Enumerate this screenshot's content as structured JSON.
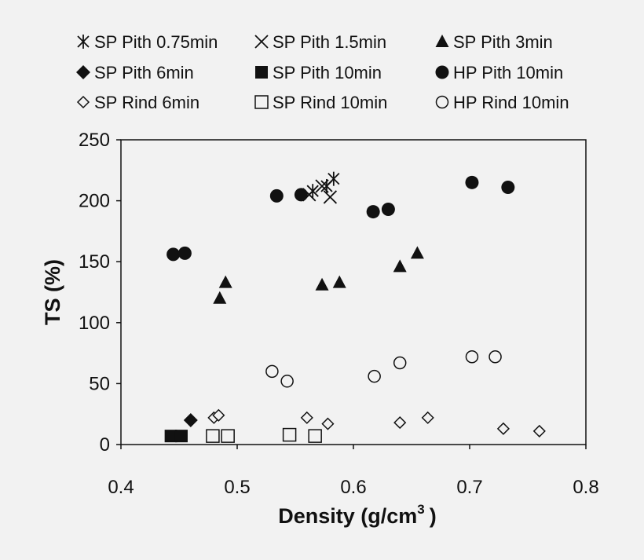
{
  "chart_data": {
    "type": "scatter",
    "xlabel": "Density (g/cm",
    "xlabel_superscript": "3",
    "xlabel_suffix": ")",
    "ylabel": "TS (%)",
    "xlim": [
      0.4,
      0.8
    ],
    "ylim": [
      0,
      250
    ],
    "x_ticks": [
      "0.4",
      "0.5",
      "0.6",
      "0.7",
      "0.8"
    ],
    "y_ticks": [
      "0",
      "50",
      "100",
      "150",
      "200",
      "250"
    ],
    "grid": false,
    "legend_position": "top",
    "series": [
      {
        "name": "SP Pith 0.75min",
        "marker": "asterisk",
        "points": [
          [
            0.565,
            208
          ],
          [
            0.577,
            212
          ],
          [
            0.583,
            218
          ]
        ]
      },
      {
        "name": "SP Pith 1.5min",
        "marker": "x",
        "points": [
          [
            0.562,
            205
          ],
          [
            0.573,
            212
          ],
          [
            0.58,
            203
          ]
        ]
      },
      {
        "name": "SP Pith 3min",
        "marker": "triangle",
        "points": [
          [
            0.485,
            120
          ],
          [
            0.49,
            133
          ],
          [
            0.573,
            131
          ],
          [
            0.588,
            133
          ],
          [
            0.64,
            146
          ],
          [
            0.655,
            157
          ]
        ]
      },
      {
        "name": "SP Pith 6min",
        "marker": "diamond-filled",
        "points": [
          [
            0.46,
            20
          ]
        ]
      },
      {
        "name": "SP Pith 10min",
        "marker": "square-filled",
        "points": [
          [
            0.443,
            7
          ],
          [
            0.452,
            7
          ]
        ]
      },
      {
        "name": "HP Pith 10min",
        "marker": "circle-filled",
        "points": [
          [
            0.445,
            156
          ],
          [
            0.455,
            157
          ],
          [
            0.534,
            204
          ],
          [
            0.555,
            205
          ],
          [
            0.617,
            191
          ],
          [
            0.63,
            193
          ],
          [
            0.702,
            215
          ],
          [
            0.733,
            211
          ]
        ]
      },
      {
        "name": "SP Rind 6min",
        "marker": "diamond-open",
        "points": [
          [
            0.48,
            22
          ],
          [
            0.484,
            24
          ],
          [
            0.56,
            22
          ],
          [
            0.578,
            17
          ],
          [
            0.64,
            18
          ],
          [
            0.664,
            22
          ],
          [
            0.729,
            13
          ],
          [
            0.76,
            11
          ]
        ]
      },
      {
        "name": "SP Rind 10min",
        "marker": "square-open",
        "points": [
          [
            0.479,
            7
          ],
          [
            0.492,
            7
          ],
          [
            0.545,
            8
          ],
          [
            0.567,
            7
          ]
        ]
      },
      {
        "name": "HP Rind 10min",
        "marker": "circle-open",
        "points": [
          [
            0.53,
            60
          ],
          [
            0.543,
            52
          ],
          [
            0.618,
            56
          ],
          [
            0.64,
            67
          ],
          [
            0.702,
            72
          ],
          [
            0.722,
            72
          ]
        ]
      }
    ]
  }
}
